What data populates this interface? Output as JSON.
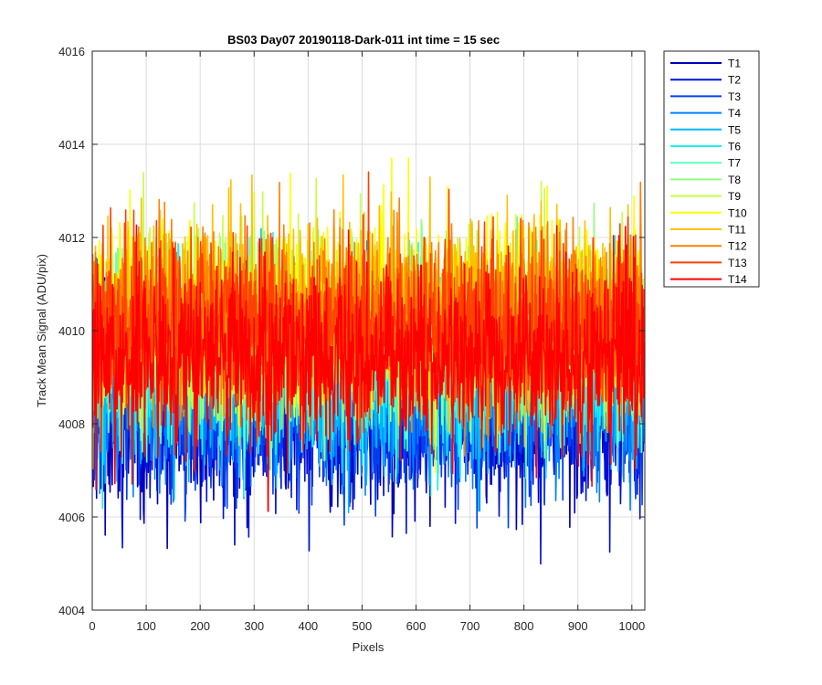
{
  "chart_data": {
    "type": "line",
    "title": "BS03 Day07 20190118-Dark-011 int time = 15 sec",
    "xlabel": "Pixels",
    "ylabel": "Track Mean Signal (ADU/pix)",
    "xlim": [
      0,
      1024
    ],
    "ylim": [
      4004,
      4016
    ],
    "xticks": [
      0,
      100,
      200,
      300,
      400,
      500,
      600,
      700,
      800,
      900,
      1000
    ],
    "yticks": [
      4004,
      4006,
      4008,
      4010,
      4012,
      4014,
      4016
    ],
    "grid": true,
    "legend_position": "outside-top-right",
    "n_pixels": 1024,
    "series": [
      {
        "name": "T1",
        "color": "#0000bb",
        "mean": 4008.2,
        "std": 0.95
      },
      {
        "name": "T2",
        "color": "#0010d8",
        "mean": 4008.3,
        "std": 0.95
      },
      {
        "name": "T3",
        "color": "#0040f0",
        "mean": 4008.5,
        "std": 0.95
      },
      {
        "name": "T4",
        "color": "#0080ff",
        "mean": 4008.7,
        "std": 0.95
      },
      {
        "name": "T5",
        "color": "#00b8ff",
        "mean": 4009.0,
        "std": 0.95
      },
      {
        "name": "T6",
        "color": "#20f0f0",
        "mean": 4009.3,
        "std": 0.95
      },
      {
        "name": "T7",
        "color": "#60ffc0",
        "mean": 4009.6,
        "std": 0.95
      },
      {
        "name": "T8",
        "color": "#90ff80",
        "mean": 4009.9,
        "std": 0.95
      },
      {
        "name": "T9",
        "color": "#c8ff40",
        "mean": 4010.1,
        "std": 0.95
      },
      {
        "name": "T10",
        "color": "#ffff00",
        "mean": 4010.4,
        "std": 0.95
      },
      {
        "name": "T11",
        "color": "#ffc000",
        "mean": 4010.4,
        "std": 0.95
      },
      {
        "name": "T12",
        "color": "#ff8000",
        "mean": 4010.3,
        "std": 0.95
      },
      {
        "name": "T13",
        "color": "#ff4000",
        "mean": 4010.0,
        "std": 0.95
      },
      {
        "name": "T14",
        "color": "#ff0000",
        "mean": 4009.4,
        "std": 0.95
      }
    ]
  }
}
